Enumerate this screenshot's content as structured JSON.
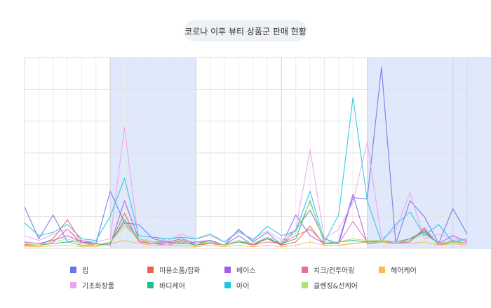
{
  "chart_data": {
    "type": "line",
    "title": "코로나 이후 뷰티 상품군 판매 현황",
    "ylim": [
      0,
      600
    ],
    "grid": true,
    "legend_position": "bottom",
    "highlight_ranges": [
      [
        6,
        12
      ],
      [
        24,
        30
      ],
      [
        30,
        36
      ]
    ],
    "series": [
      {
        "name": "립",
        "color": "#6b73e8",
        "values": [
          130,
          30,
          105,
          20,
          25,
          15,
          180,
          80,
          75,
          30,
          20,
          15,
          20,
          25,
          10,
          60,
          20,
          50,
          10,
          60,
          120,
          30,
          15,
          160,
          155,
          570,
          15,
          150,
          100,
          15,
          125,
          45
        ]
      },
      {
        "name": "미용소품/잡화",
        "color": "#e8634a",
        "values": [
          12,
          10,
          30,
          90,
          20,
          10,
          15,
          110,
          20,
          15,
          15,
          25,
          10,
          15,
          10,
          20,
          10,
          30,
          10,
          20,
          70,
          10,
          10,
          15,
          20,
          20,
          15,
          25,
          60,
          10,
          20,
          15
        ]
      },
      {
        "name": "베이스",
        "color": "#a05de6",
        "values": [
          20,
          15,
          25,
          40,
          20,
          15,
          10,
          150,
          30,
          20,
          20,
          30,
          15,
          25,
          10,
          40,
          10,
          35,
          10,
          105,
          40,
          15,
          20,
          170,
          15,
          20,
          20,
          30,
          55,
          15,
          40,
          20
        ]
      },
      {
        "name": "치크/컨투어링",
        "color": "#f06a9a",
        "values": [
          10,
          10,
          20,
          60,
          15,
          10,
          20,
          80,
          25,
          15,
          10,
          20,
          10,
          20,
          10,
          25,
          10,
          20,
          15,
          40,
          60,
          15,
          15,
          85,
          20,
          20,
          15,
          20,
          65,
          10,
          25,
          15
        ]
      },
      {
        "name": "헤어케어",
        "color": "#f5c04a",
        "values": [
          5,
          5,
          8,
          10,
          5,
          5,
          15,
          25,
          15,
          10,
          10,
          10,
          5,
          10,
          5,
          10,
          5,
          10,
          5,
          10,
          20,
          10,
          10,
          15,
          20,
          20,
          15,
          15,
          20,
          10,
          15,
          10
        ]
      },
      {
        "name": "기초화장품",
        "color": "#f2a0f0",
        "values": [
          40,
          25,
          45,
          60,
          25,
          20,
          30,
          380,
          20,
          35,
          25,
          45,
          30,
          40,
          20,
          50,
          30,
          55,
          25,
          60,
          310,
          30,
          60,
          145,
          335,
          30,
          60,
          175,
          30,
          45,
          30,
          25
        ]
      },
      {
        "name": "바디케어",
        "color": "#1fc08e",
        "values": [
          10,
          10,
          15,
          20,
          10,
          10,
          15,
          90,
          30,
          20,
          15,
          20,
          10,
          20,
          10,
          20,
          15,
          30,
          15,
          30,
          150,
          15,
          20,
          25,
          20,
          25,
          20,
          30,
          50,
          15,
          20,
          15
        ]
      },
      {
        "name": "아이",
        "color": "#1fc6e0",
        "values": [
          80,
          40,
          50,
          75,
          30,
          25,
          100,
          220,
          40,
          35,
          30,
          35,
          30,
          45,
          20,
          55,
          25,
          70,
          40,
          55,
          180,
          20,
          105,
          475,
          150,
          20,
          75,
          115,
          40,
          75,
          20,
          30
        ]
      },
      {
        "name": "클렌징&선케어",
        "color": "#b3e06a",
        "values": [
          15,
          10,
          20,
          30,
          15,
          10,
          20,
          70,
          30,
          20,
          15,
          20,
          15,
          20,
          10,
          25,
          15,
          35,
          20,
          50,
          145,
          20,
          20,
          30,
          25,
          25,
          20,
          25,
          45,
          15,
          20,
          15
        ]
      }
    ]
  }
}
